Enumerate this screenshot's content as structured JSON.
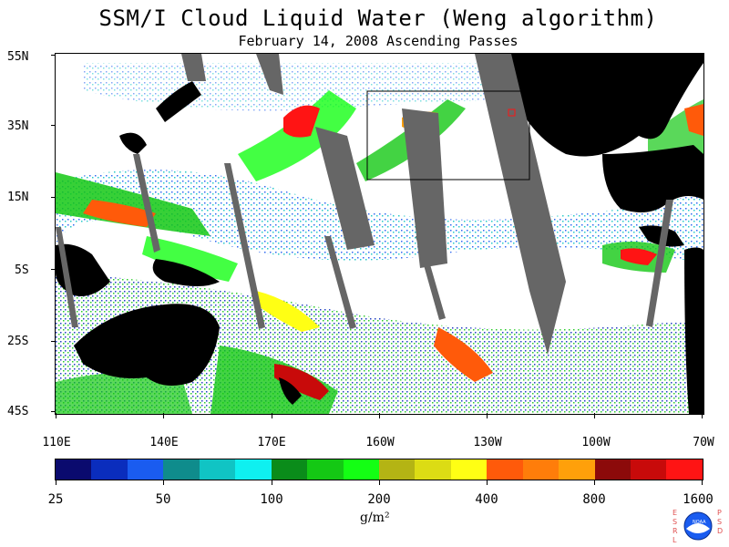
{
  "title": "SSM/I Cloud Liquid Water (Weng algorithm)",
  "subtitle": "February 14, 2008  Ascending Passes",
  "lat_labels": [
    "55N",
    "35N",
    "15N",
    "5S",
    "25S",
    "45S"
  ],
  "lon_labels": [
    "110E",
    "140E",
    "170E",
    "160W",
    "130W",
    "100W",
    "70W"
  ],
  "colorbar": {
    "labels": [
      "25",
      "50",
      "100",
      "200",
      "400",
      "800",
      "1600"
    ],
    "units": "g/m²",
    "colors": [
      "#0a0a6e",
      "#0a2dbd",
      "#1a5cf0",
      "#0f8c8c",
      "#10c4c4",
      "#0ff0f0",
      "#0a8c1a",
      "#14c814",
      "#14ff14",
      "#b4b414",
      "#dcdc14",
      "#ffff14",
      "#ff5a0a",
      "#ff7d0a",
      "#ffa00a",
      "#8c0a0a",
      "#c80a0a",
      "#ff1414"
    ]
  },
  "logo": {
    "letters_left": "ESRL",
    "letters_right": "PSD",
    "badge": "NOAA"
  }
}
